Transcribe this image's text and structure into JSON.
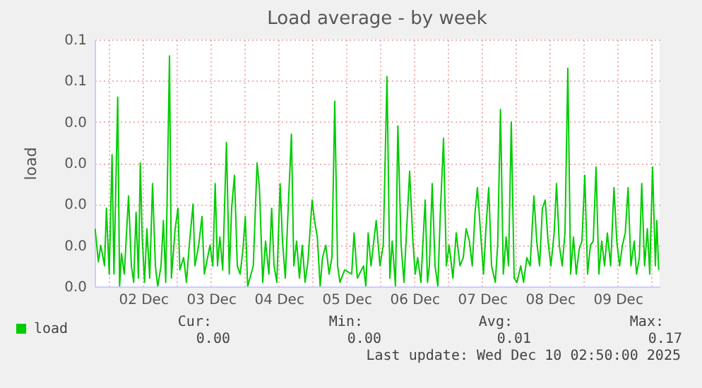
{
  "chart_data": {
    "type": "line",
    "title": "Load average - by week",
    "ylabel": "load",
    "x": [
      "2025-12-01T19:00",
      "2025-12-01T20:10",
      "2025-12-01T21:00",
      "2025-12-01T22:20",
      "2025-12-01T23:00",
      "2025-12-02T00:00",
      "2025-12-02T01:00",
      "2025-12-02T01:40",
      "2025-12-02T03:00",
      "2025-12-02T03:40",
      "2025-12-02T04:20",
      "2025-12-02T05:20",
      "2025-12-02T06:50",
      "2025-12-02T07:50",
      "2025-12-02T08:40",
      "2025-12-02T09:30",
      "2025-12-02T10:20",
      "2025-12-02T11:00",
      "2025-12-02T11:40",
      "2025-12-02T12:30",
      "2025-12-02T13:20",
      "2025-12-02T14:20",
      "2025-12-02T15:20",
      "2025-12-02T16:20",
      "2025-12-02T17:10",
      "2025-12-02T18:20",
      "2025-12-02T19:10",
      "2025-12-02T20:00",
      "2025-12-02T21:20",
      "2025-12-02T22:00",
      "2025-12-02T23:20",
      "2025-12-03T00:20",
      "2025-12-03T01:00",
      "2025-12-03T02:20",
      "2025-12-03T03:20",
      "2025-12-03T04:20",
      "2025-12-03T05:40",
      "2025-12-03T06:20",
      "2025-12-03T07:40",
      "2025-12-03T08:50",
      "2025-12-03T09:40",
      "2025-12-03T11:40",
      "2025-12-03T12:40",
      "2025-12-03T13:30",
      "2025-12-03T14:20",
      "2025-12-03T15:10",
      "2025-12-03T16:10",
      "2025-12-03T17:30",
      "2025-12-03T18:30",
      "2025-12-03T19:20",
      "2025-12-03T20:20",
      "2025-12-03T21:20",
      "2025-12-03T22:20",
      "2025-12-03T23:20",
      "2025-12-04T00:10",
      "2025-12-04T01:00",
      "2025-12-04T03:00",
      "2025-12-04T04:20",
      "2025-12-04T05:10",
      "2025-12-04T06:20",
      "2025-12-04T07:20",
      "2025-12-04T08:30",
      "2025-12-04T09:30",
      "2025-12-04T10:20",
      "2025-12-04T11:20",
      "2025-12-04T12:30",
      "2025-12-04T13:20",
      "2025-12-04T14:20",
      "2025-12-04T15:10",
      "2025-12-04T16:30",
      "2025-12-04T17:20",
      "2025-12-04T18:20",
      "2025-12-04T19:20",
      "2025-12-04T20:20",
      "2025-12-04T21:20",
      "2025-12-04T22:20",
      "2025-12-04T23:50",
      "2025-12-05T00:40",
      "2025-12-05T01:40",
      "2025-12-05T02:40",
      "2025-12-05T03:30",
      "2025-12-05T04:40",
      "2025-12-05T05:50",
      "2025-12-05T06:50",
      "2025-12-05T07:50",
      "2025-12-05T08:50",
      "2025-12-05T09:40",
      "2025-12-05T11:20",
      "2025-12-05T13:50",
      "2025-12-05T14:40",
      "2025-12-05T15:50",
      "2025-12-05T18:00",
      "2025-12-05T18:50",
      "2025-12-05T19:40",
      "2025-12-05T20:40",
      "2025-12-05T22:30",
      "2025-12-05T23:50",
      "2025-12-06T01:00",
      "2025-12-06T02:20",
      "2025-12-06T03:20",
      "2025-12-06T04:10",
      "2025-12-06T05:20",
      "2025-12-06T06:10",
      "2025-12-06T07:20",
      "2025-12-06T08:20",
      "2025-12-06T10:20",
      "2025-12-06T11:30",
      "2025-12-06T12:20",
      "2025-12-06T13:10",
      "2025-12-06T14:20",
      "2025-12-06T15:50",
      "2025-12-06T16:40",
      "2025-12-06T17:20",
      "2025-12-06T18:20",
      "2025-12-06T19:20",
      "2025-12-06T20:20",
      "2025-12-06T21:10",
      "2025-12-06T22:20",
      "2025-12-06T23:20",
      "2025-12-07T00:20",
      "2025-12-07T01:40",
      "2025-12-07T02:50",
      "2025-12-07T04:10",
      "2025-12-07T05:20",
      "2025-12-07T06:20",
      "2025-12-07T07:30",
      "2025-12-07T08:30",
      "2025-12-07T09:30",
      "2025-12-07T10:20",
      "2025-12-07T11:40",
      "2025-12-07T12:30",
      "2025-12-07T13:20",
      "2025-12-07T14:20",
      "2025-12-07T15:20",
      "2025-12-07T16:40",
      "2025-12-07T17:30",
      "2025-12-07T18:30",
      "2025-12-07T19:30",
      "2025-12-07T20:30",
      "2025-12-07T21:20",
      "2025-12-07T22:20",
      "2025-12-07T23:20",
      "2025-12-08T00:20",
      "2025-12-08T01:40",
      "2025-12-08T02:40",
      "2025-12-08T03:50",
      "2025-12-08T05:00",
      "2025-12-08T06:20",
      "2025-12-08T07:20",
      "2025-12-08T08:20",
      "2025-12-08T09:20",
      "2025-12-08T10:20",
      "2025-12-08T11:20",
      "2025-12-08T12:20",
      "2025-12-08T13:30",
      "2025-12-08T14:20",
      "2025-12-08T15:20",
      "2025-12-08T16:20",
      "2025-12-08T17:20",
      "2025-12-08T18:20",
      "2025-12-08T19:20",
      "2025-12-08T20:20",
      "2025-12-08T21:20",
      "2025-12-08T22:20",
      "2025-12-08T23:20",
      "2025-12-09T00:20",
      "2025-12-09T01:20",
      "2025-12-09T02:20",
      "2025-12-09T03:20",
      "2025-12-09T04:20",
      "2025-12-09T05:20",
      "2025-12-09T06:20",
      "2025-12-09T07:20",
      "2025-12-09T08:20",
      "2025-12-09T09:30",
      "2025-12-09T10:40",
      "2025-12-09T11:40",
      "2025-12-09T12:40",
      "2025-12-09T13:40",
      "2025-12-09T14:40",
      "2025-12-09T15:40",
      "2025-12-09T16:40",
      "2025-12-09T17:50",
      "2025-12-09T18:40",
      "2025-12-09T19:40",
      "2025-12-09T20:30",
      "2025-12-09T21:30",
      "2025-12-09T22:30",
      "2025-12-09T23:20",
      "2025-12-10T00:20",
      "2025-12-10T01:20",
      "2025-12-10T01:50",
      "2025-12-10T02:30"
    ],
    "series": [
      {
        "name": "load",
        "color": "#00cc00",
        "values": [
          0.014,
          0.006,
          0.01,
          0.005,
          0.019,
          0.003,
          0.032,
          0.003,
          0.046,
          0.0,
          0.008,
          0.003,
          0.022,
          0.005,
          0.001,
          0.018,
          0.002,
          0.03,
          0.012,
          0.001,
          0.014,
          0.002,
          0.025,
          0.005,
          0.0,
          0.005,
          0.016,
          0.001,
          0.056,
          0.002,
          0.014,
          0.019,
          0.004,
          0.007,
          0.001,
          0.01,
          0.02,
          0.005,
          0.01,
          0.017,
          0.003,
          0.01,
          0.005,
          0.025,
          0.005,
          0.012,
          0.004,
          0.035,
          0.003,
          0.019,
          0.027,
          0.005,
          0.003,
          0.009,
          0.017,
          0.0,
          0.005,
          0.03,
          0.024,
          0.001,
          0.011,
          0.003,
          0.019,
          0.005,
          0.001,
          0.025,
          0.011,
          0.002,
          0.016,
          0.037,
          0.005,
          0.011,
          0.002,
          0.01,
          0.001,
          0.006,
          0.021,
          0.016,
          0.012,
          0.0,
          0.007,
          0.01,
          0.003,
          0.007,
          0.045,
          0.005,
          0.001,
          0.004,
          0.003,
          0.013,
          0.002,
          0.005,
          0.0,
          0.013,
          0.005,
          0.016,
          0.005,
          0.01,
          0.051,
          0.002,
          0.011,
          0.0,
          0.039,
          0.01,
          0.001,
          0.028,
          0.011,
          0.003,
          0.007,
          0.001,
          0.021,
          0.001,
          0.005,
          0.025,
          0.005,
          0.0,
          0.017,
          0.036,
          0.005,
          0.01,
          0.002,
          0.013,
          0.005,
          0.007,
          0.014,
          0.011,
          0.005,
          0.018,
          0.024,
          0.011,
          0.003,
          0.014,
          0.024,
          0.005,
          0.001,
          0.01,
          0.043,
          0.003,
          0.012,
          0.005,
          0.04,
          0.002,
          0.001,
          0.005,
          0.001,
          0.007,
          0.005,
          0.022,
          0.011,
          0.005,
          0.019,
          0.021,
          0.011,
          0.005,
          0.013,
          0.025,
          0.01,
          0.005,
          0.013,
          0.053,
          0.003,
          0.012,
          0.003,
          0.009,
          0.011,
          0.027,
          0.003,
          0.01,
          0.011,
          0.029,
          0.003,
          0.011,
          0.005,
          0.013,
          0.005,
          0.024,
          0.011,
          0.005,
          0.01,
          0.013,
          0.024,
          0.005,
          0.011,
          0.003,
          0.007,
          0.025,
          0.005,
          0.014,
          0.003,
          0.029,
          0.005,
          0.016,
          0.004
        ]
      }
    ],
    "xlim": [
      "2025-12-01T18:50",
      "2025-12-10T02:50"
    ],
    "xticks": [
      {
        "value": "2025-12-02T00:00",
        "label": null
      },
      {
        "value": "2025-12-02T12:00",
        "label": "02 Dec"
      },
      {
        "value": "2025-12-03T00:00",
        "label": null
      },
      {
        "value": "2025-12-03T12:00",
        "label": "03 Dec"
      },
      {
        "value": "2025-12-04T00:00",
        "label": null
      },
      {
        "value": "2025-12-04T12:00",
        "label": "04 Dec"
      },
      {
        "value": "2025-12-05T00:00",
        "label": null
      },
      {
        "value": "2025-12-05T12:00",
        "label": "05 Dec"
      },
      {
        "value": "2025-12-06T00:00",
        "label": null
      },
      {
        "value": "2025-12-06T12:00",
        "label": "06 Dec"
      },
      {
        "value": "2025-12-07T00:00",
        "label": null
      },
      {
        "value": "2025-12-07T12:00",
        "label": "07 Dec"
      },
      {
        "value": "2025-12-08T00:00",
        "label": null
      },
      {
        "value": "2025-12-08T12:00",
        "label": "08 Dec"
      },
      {
        "value": "2025-12-09T00:00",
        "label": null
      },
      {
        "value": "2025-12-09T12:00",
        "label": "09 Dec"
      },
      {
        "value": "2025-12-10T00:00",
        "label": null
      }
    ],
    "ylim": [
      0,
      0.06
    ],
    "yticks": [
      {
        "value": 0,
        "label": "0.0"
      },
      {
        "value": 0.01,
        "label": "0.0"
      },
      {
        "value": 0.02,
        "label": "0.0"
      },
      {
        "value": 0.03,
        "label": "0.0"
      },
      {
        "value": 0.04,
        "label": "0.0"
      },
      {
        "value": 0.05,
        "label": "0.1"
      },
      {
        "value": 0.06,
        "label": "0.1"
      }
    ],
    "grid": true,
    "legend": "bottom left",
    "annotations": [
      "Cur:",
      "0.00",
      "Min:",
      "0.00",
      "Avg:",
      "0.01",
      "Max:",
      "0.17",
      "Last update: Wed Dec 10 02:50:00 2025"
    ]
  }
}
